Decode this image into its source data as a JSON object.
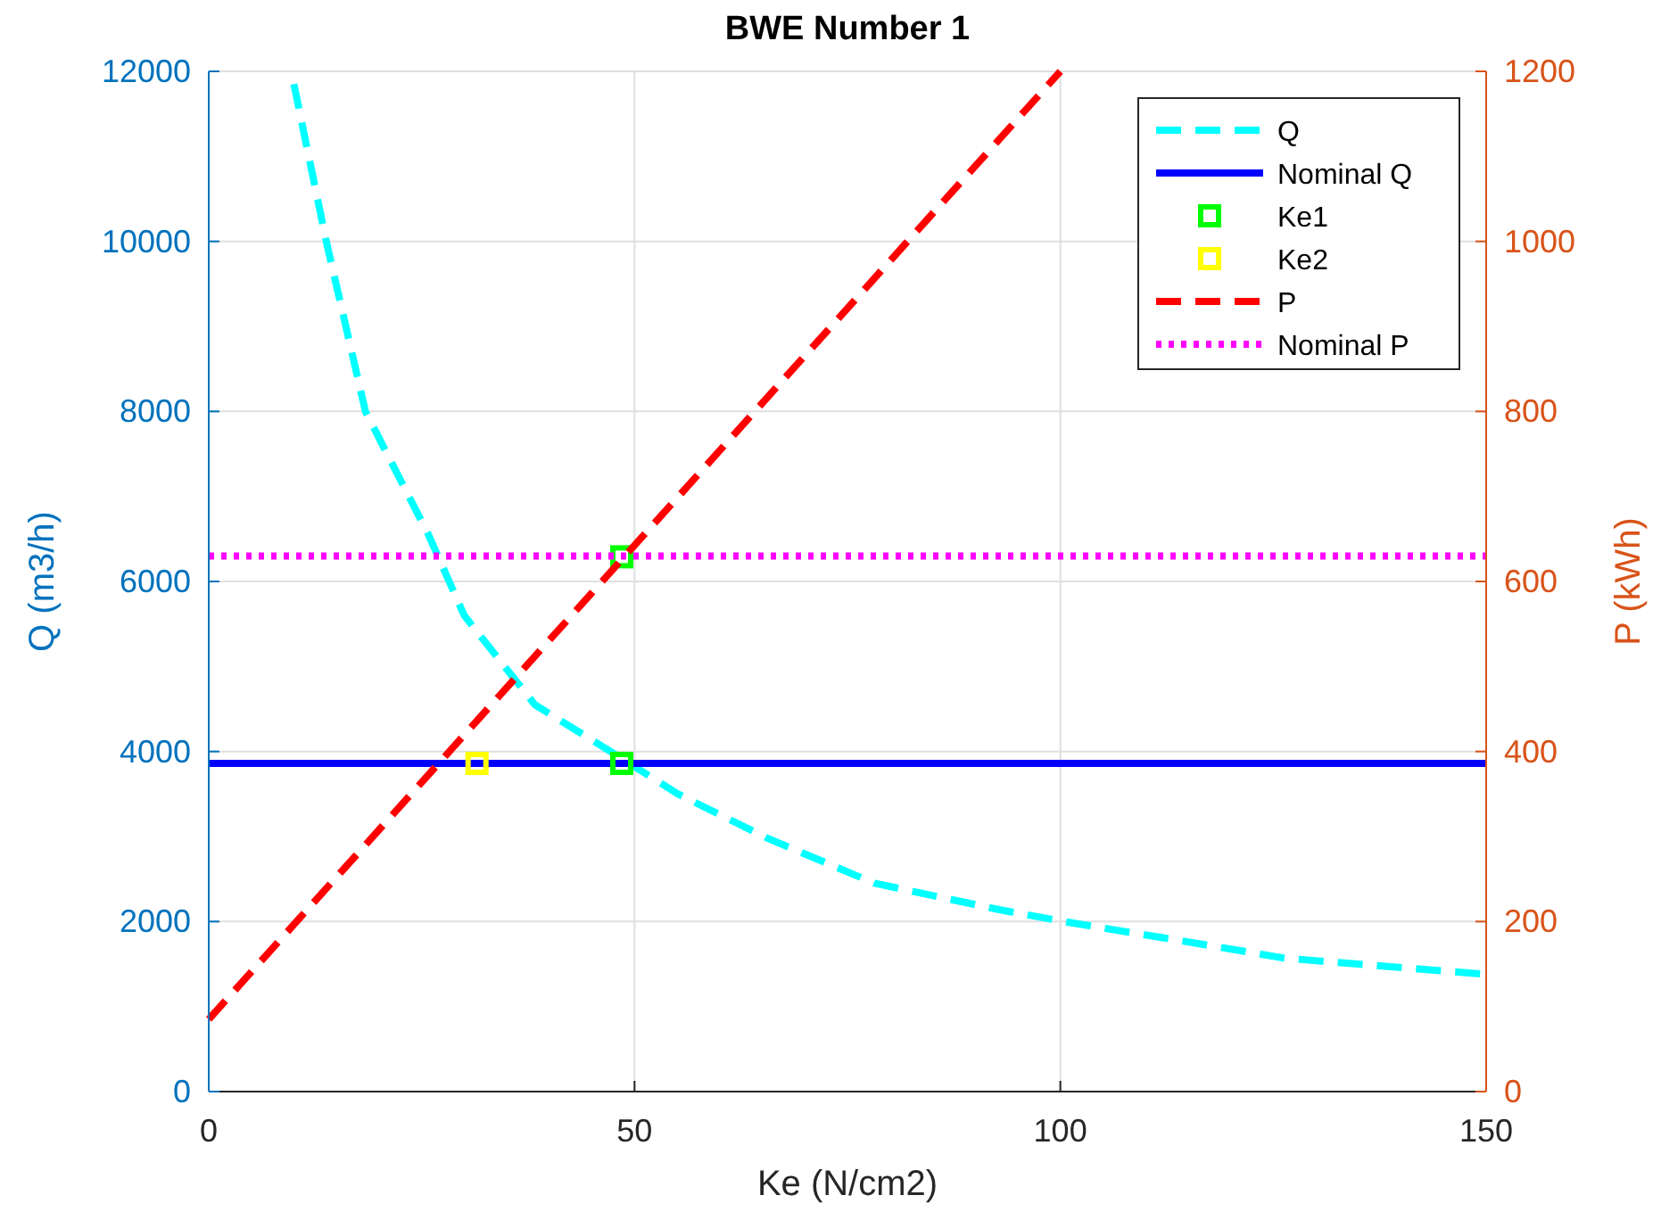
{
  "chart_data": {
    "type": "line",
    "title": "BWE Number 1",
    "xlabel": "Ke (N/cm2)",
    "ylabel": "Q (m3/h)",
    "y2label": "P (kWh)",
    "xlim": [
      0,
      150
    ],
    "xticks": [
      0,
      50,
      100,
      150
    ],
    "ylim": [
      0,
      12000
    ],
    "yticks": [
      0,
      2000,
      4000,
      6000,
      8000,
      10000,
      12000
    ],
    "y2lim": [
      0,
      1200
    ],
    "y2ticks": [
      0,
      200,
      400,
      600,
      800,
      1000,
      1200
    ],
    "grid": true,
    "legend": "top right",
    "series": [
      {
        "name": "Q",
        "color": "#00ffff",
        "line_style": "dashed",
        "x": [
          10,
          13.8,
          18.4,
          25.8,
          30,
          38.3,
          46.7,
          55.1,
          65.6,
          78.2,
          92.8,
          101,
          113.8,
          126.3,
          141,
          150
        ],
        "values": [
          11850,
          10000,
          8000,
          6550,
          5600,
          4550,
          4030,
          3500,
          2980,
          2450,
          2140,
          1990,
          1780,
          1570,
          1450,
          1380
        ]
      },
      {
        "name": "Nominal Q",
        "color": "#0000ff",
        "line_style": "solid",
        "x": [
          0,
          150
        ],
        "values": [
          3860,
          3860
        ]
      },
      {
        "name": "Ke1",
        "type": "scatter",
        "color": "#00ff00",
        "marker": "square",
        "x": [
          48.5,
          48.5
        ],
        "values": [
          6290,
          3860
        ]
      },
      {
        "name": "Ke2",
        "type": "scatter",
        "color": "#ffff00",
        "marker": "square",
        "x": [
          31.5
        ],
        "values": [
          3860
        ]
      },
      {
        "name": "P",
        "color": "#ff0000",
        "line_style": "dashed",
        "axis": "y2",
        "x": [
          0,
          100
        ],
        "values": [
          85,
          1200
        ]
      },
      {
        "name": "Nominal P",
        "color": "#ff00ff",
        "line_style": "dotted",
        "axis": "y2",
        "x": [
          0,
          150
        ],
        "values": [
          630,
          630
        ]
      }
    ]
  }
}
